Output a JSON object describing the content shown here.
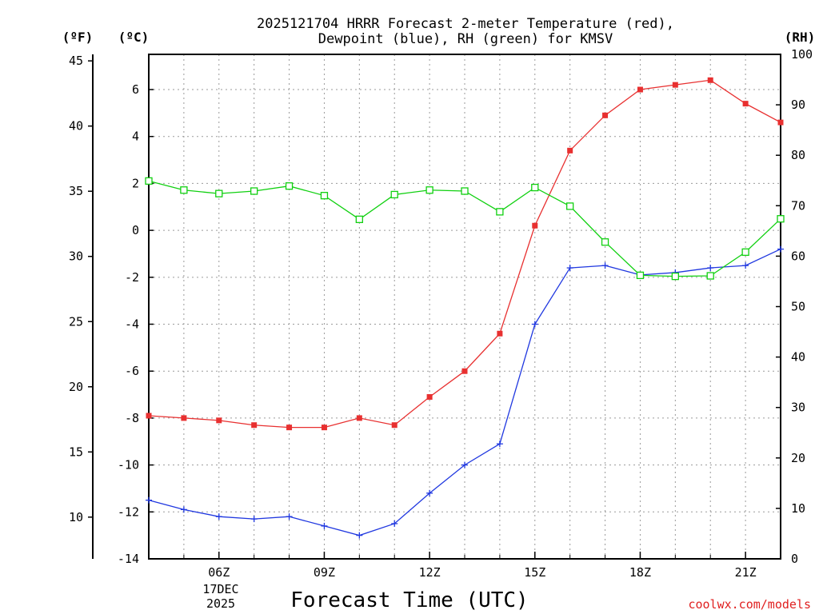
{
  "units": {
    "left_f": "(ºF)",
    "left_c": "(ºC)",
    "right_rh": "(RH)"
  },
  "credit": "coolwx.com/models",
  "colors": {
    "temperature": "#e83030",
    "dewpoint": "#2038e0",
    "rh": "#10d010"
  },
  "chart_data": {
    "type": "line",
    "title": [
      "2025121704 HRRR Forecast 2-meter Temperature (red),",
      "Dewpoint (blue), RH (green) for KMSV"
    ],
    "xlabel": "Forecast Time (UTC)",
    "x_hours": [
      4,
      5,
      6,
      7,
      8,
      9,
      10,
      11,
      12,
      13,
      14,
      15,
      16,
      17,
      18,
      19,
      20,
      21,
      22
    ],
    "xlim": [
      4,
      22
    ],
    "x_ticks": [
      {
        "hour": 6,
        "label": "06Z"
      },
      {
        "hour": 9,
        "label": "09Z"
      },
      {
        "hour": 12,
        "label": "12Z"
      },
      {
        "hour": 15,
        "label": "15Z"
      },
      {
        "hour": 18,
        "label": "18Z"
      },
      {
        "hour": 21,
        "label": "21Z"
      }
    ],
    "date_label": [
      "17DEC",
      "2025"
    ],
    "ylim_c": [
      -14,
      7.5
    ],
    "y_ticks_c": [
      -14,
      -12,
      -10,
      -8,
      -6,
      -4,
      -2,
      0,
      2,
      4,
      6
    ],
    "y_ticks_f": [
      10,
      15,
      20,
      25,
      30,
      35,
      40,
      45
    ],
    "ylim_rh": [
      0,
      100
    ],
    "y_ticks_rh": [
      0,
      10,
      20,
      30,
      40,
      50,
      60,
      70,
      80,
      90,
      100
    ],
    "series": [
      {
        "name": "Temperature",
        "axis": "c",
        "marker": "filled-square",
        "color_key": "temperature",
        "values": [
          -7.9,
          -8.0,
          -8.1,
          -8.3,
          -8.4,
          -8.4,
          -8.0,
          -8.3,
          -7.1,
          -6.0,
          -4.4,
          0.2,
          3.4,
          4.9,
          6.0,
          6.2,
          6.4,
          5.4,
          4.6
        ]
      },
      {
        "name": "Dewpoint",
        "axis": "c",
        "marker": "plus",
        "color_key": "dewpoint",
        "values": [
          -11.5,
          -11.9,
          -12.2,
          -12.3,
          -12.2,
          -12.6,
          -13.0,
          -12.5,
          -11.2,
          -10.0,
          -9.1,
          -4.0,
          -1.6,
          -1.5,
          -1.9,
          -1.8,
          -1.6,
          -1.5,
          -0.8
        ]
      },
      {
        "name": "RH",
        "axis": "rh",
        "marker": "open-square",
        "color_key": "rh",
        "values": [
          74.9,
          73.1,
          72.4,
          72.9,
          73.9,
          72.0,
          67.3,
          72.2,
          73.1,
          72.9,
          68.8,
          73.6,
          69.9,
          62.8,
          56.2,
          56.0,
          56.1,
          60.8,
          67.4
        ]
      }
    ]
  }
}
